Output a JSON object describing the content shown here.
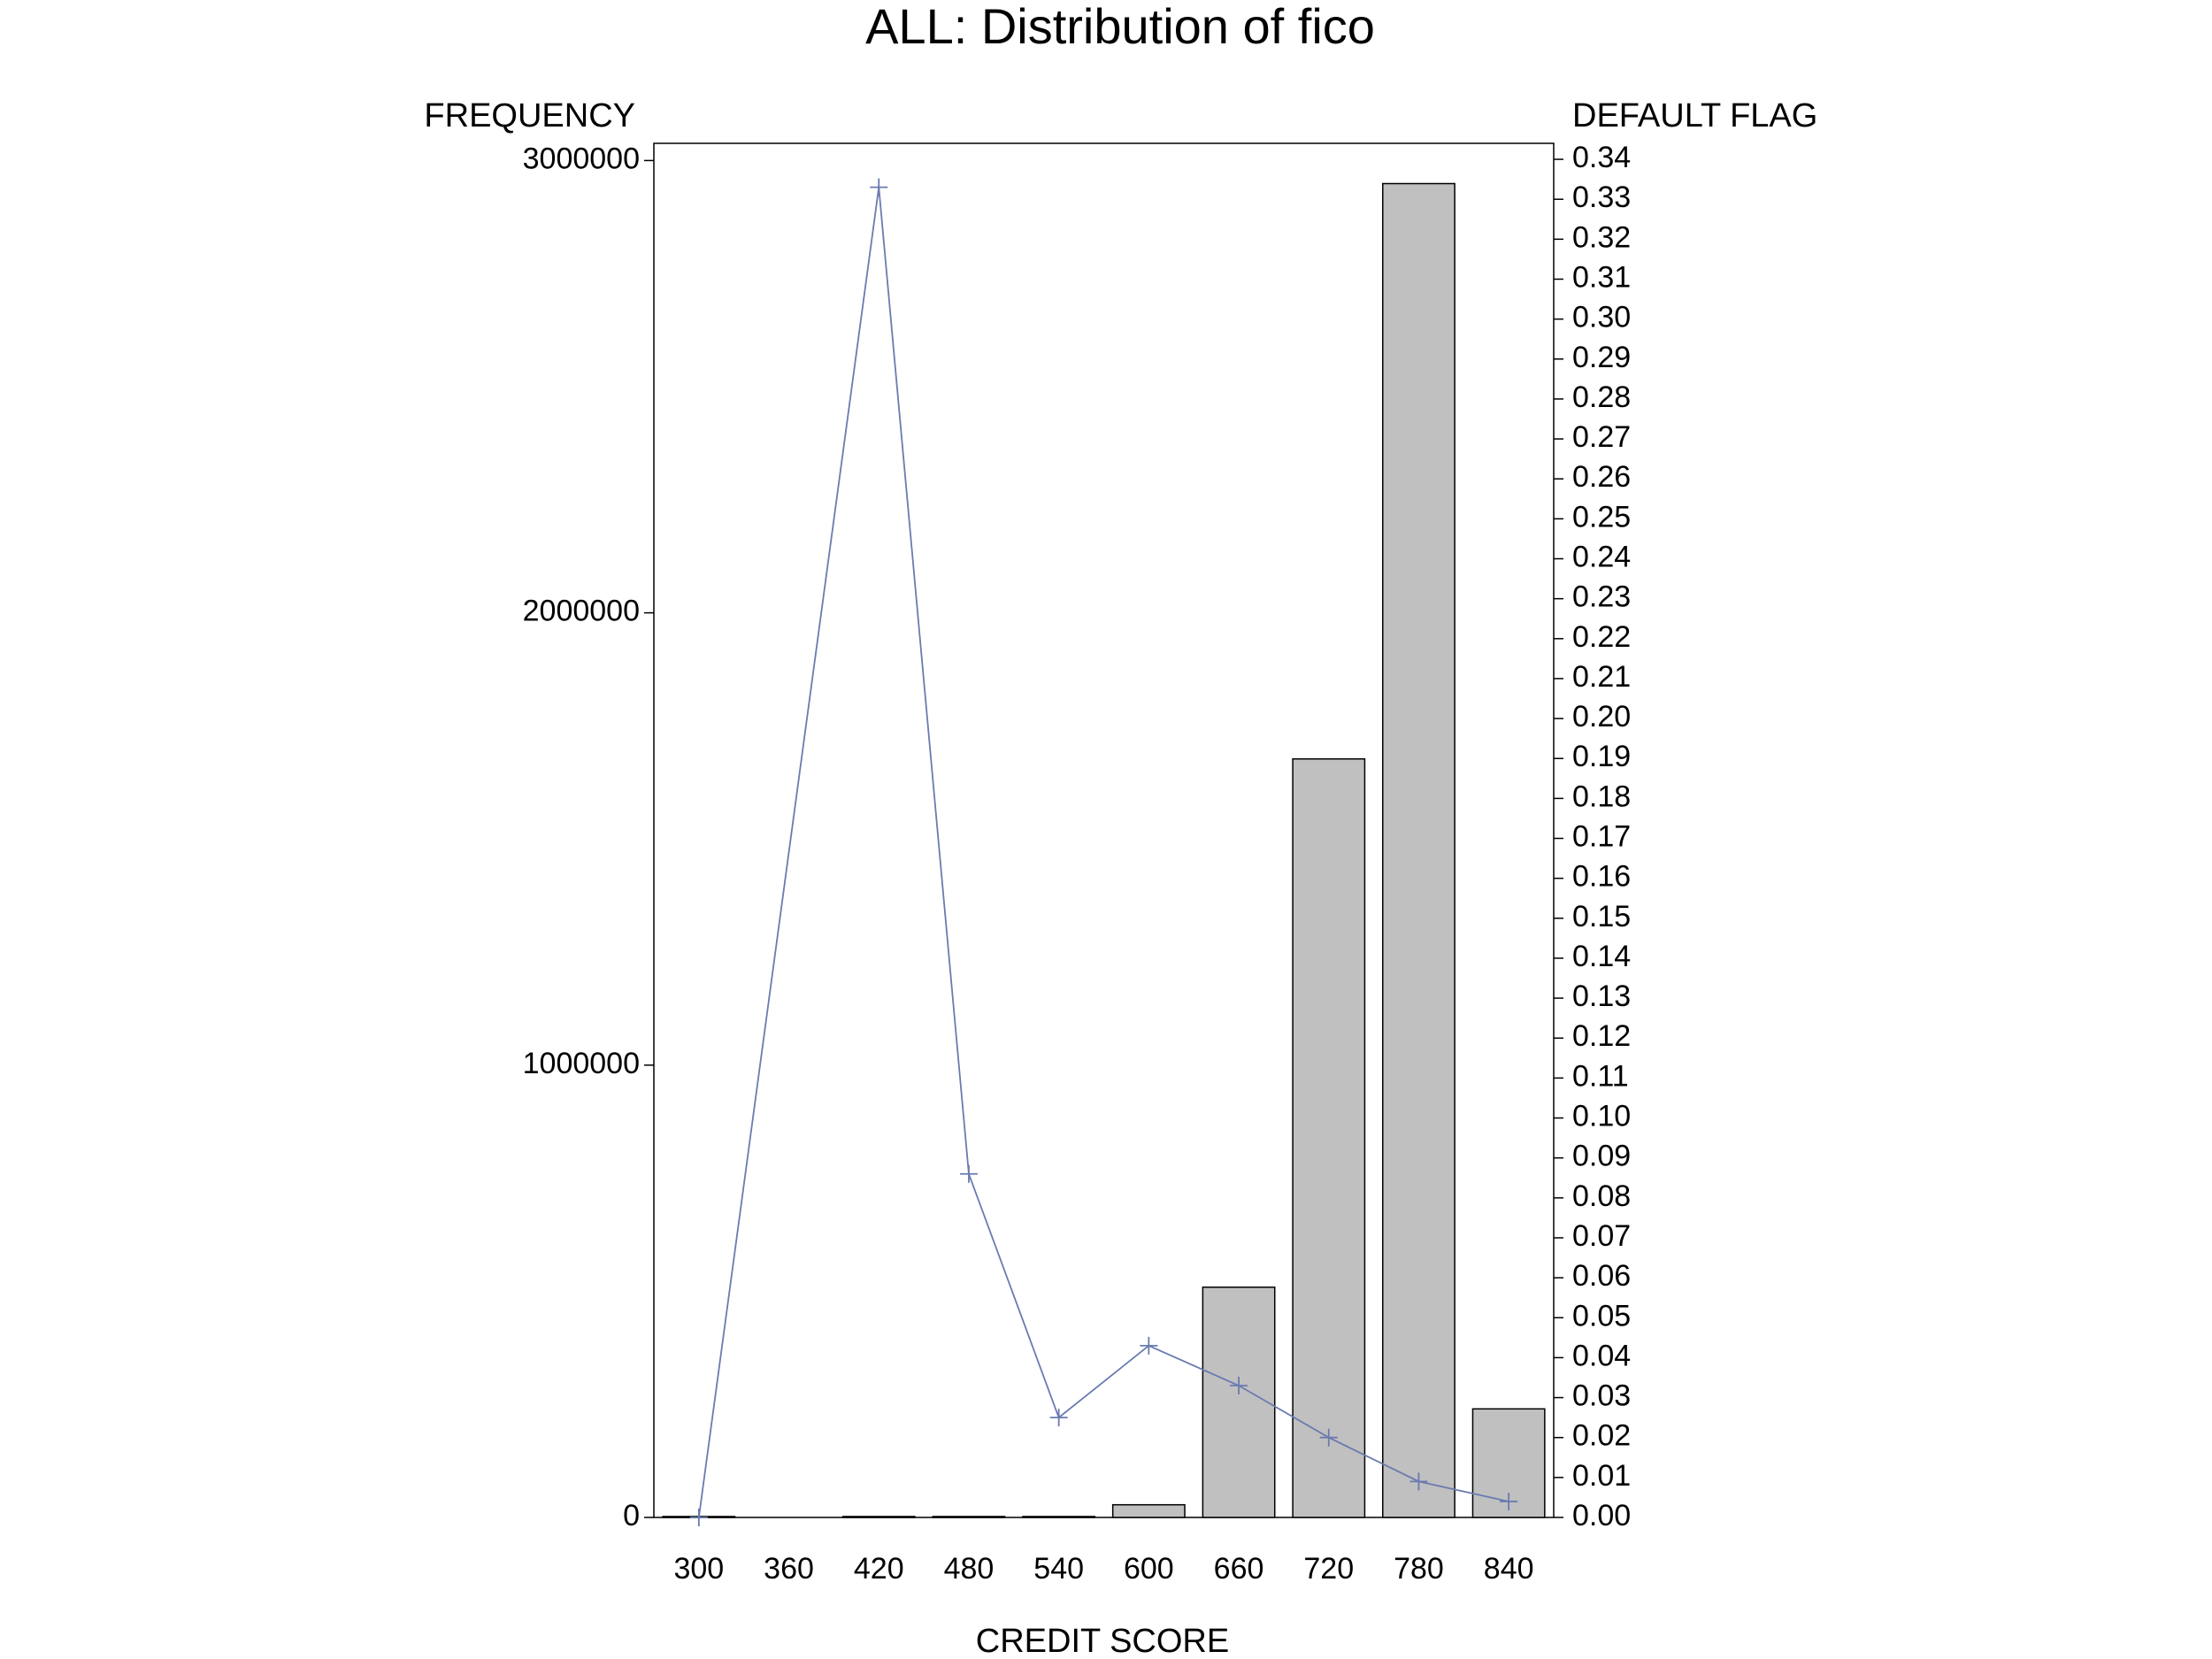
{
  "chart_data": {
    "type": "bar-line",
    "title": "ALL: Distribution of fico",
    "xlabel": "CREDIT SCORE",
    "ylabel": "FREQUENCY",
    "y2label": "DEFAULT FLAG",
    "xlim": [
      270,
      870
    ],
    "xticks": [
      300,
      360,
      420,
      480,
      540,
      600,
      660,
      720,
      780,
      840
    ],
    "ylim": [
      0,
      3038000
    ],
    "yticks": [
      0,
      1000000,
      2000000,
      3000000
    ],
    "y2lim": [
      0,
      0.344
    ],
    "y2ticks": [
      {
        "value": 0,
        "label": "0.00"
      },
      {
        "value": 0.01,
        "label": "0.01"
      },
      {
        "value": 0.02,
        "label": "0.02"
      },
      {
        "value": 0.03,
        "label": "0.03"
      },
      {
        "value": 0.04,
        "label": "0.04"
      },
      {
        "value": 0.05,
        "label": "0.05"
      },
      {
        "value": 0.06,
        "label": "0.06"
      },
      {
        "value": 0.07,
        "label": "0.07"
      },
      {
        "value": 0.08,
        "label": "0.08"
      },
      {
        "value": 0.09,
        "label": "0.09"
      },
      {
        "value": 0.1,
        "label": "0.10"
      },
      {
        "value": 0.11,
        "label": "0.11"
      },
      {
        "value": 0.12,
        "label": "0.12"
      },
      {
        "value": 0.13,
        "label": "0.13"
      },
      {
        "value": 0.14,
        "label": "0.14"
      },
      {
        "value": 0.15,
        "label": "0.15"
      },
      {
        "value": 0.16,
        "label": "0.16"
      },
      {
        "value": 0.17,
        "label": "0.17"
      },
      {
        "value": 0.18,
        "label": "0.18"
      },
      {
        "value": 0.19,
        "label": "0.19"
      },
      {
        "value": 0.2,
        "label": "0.20"
      },
      {
        "value": 0.21,
        "label": "0.21"
      },
      {
        "value": 0.22,
        "label": "0.22"
      },
      {
        "value": 0.23,
        "label": "0.23"
      },
      {
        "value": 0.24,
        "label": "0.24"
      },
      {
        "value": 0.25,
        "label": "0.25"
      },
      {
        "value": 0.26,
        "label": "0.26"
      },
      {
        "value": 0.27,
        "label": "0.27"
      },
      {
        "value": 0.28,
        "label": "0.28"
      },
      {
        "value": 0.29,
        "label": "0.29"
      },
      {
        "value": 0.3,
        "label": "0.30"
      },
      {
        "value": 0.31,
        "label": "0.31"
      },
      {
        "value": 0.32,
        "label": "0.32"
      },
      {
        "value": 0.33,
        "label": "0.33"
      },
      {
        "value": 0.34,
        "label": "0.34"
      }
    ],
    "bars": {
      "color": "#c0c0c0",
      "x": [
        300,
        360,
        420,
        480,
        540,
        600,
        660,
        720,
        780,
        840
      ],
      "values": [
        2000,
        0,
        2000,
        2000,
        2000,
        28000,
        509000,
        1677000,
        2949000,
        240000
      ]
    },
    "line": {
      "color": "#6a7bb0",
      "axis": "y2",
      "x": [
        300,
        420,
        480,
        540,
        600,
        660,
        720,
        780,
        840
      ],
      "values": [
        0,
        0.333,
        0.086,
        0.025,
        0.043,
        0.033,
        0.02,
        0.009,
        0.004
      ]
    }
  }
}
